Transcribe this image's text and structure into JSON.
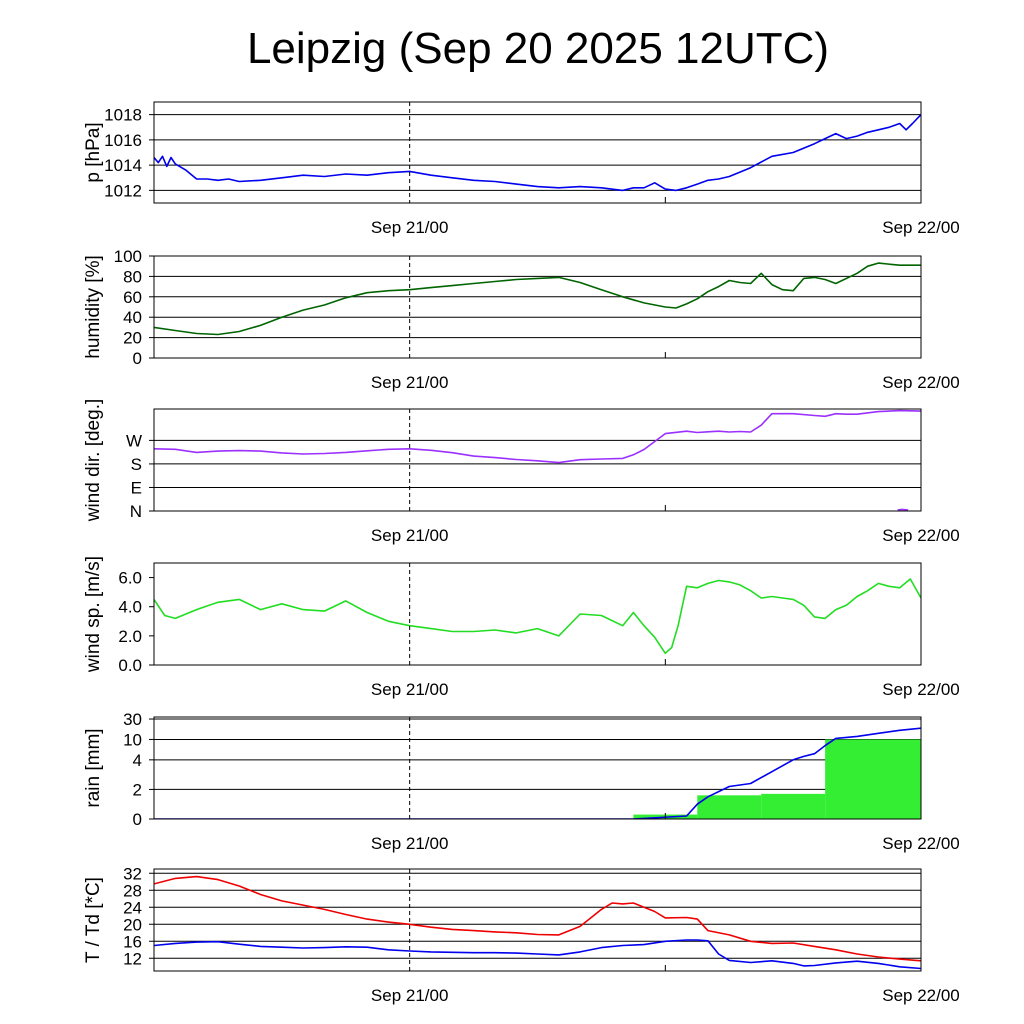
{
  "title": "Leipzig (Sep 20 2025 12UTC)",
  "time_axis": {
    "range_hours": [
      0,
      36
    ],
    "ticks": [
      {
        "hours": 12,
        "label": "Sep 21/00",
        "dashed": true
      },
      {
        "hours": 24,
        "label": "",
        "dashed": false
      },
      {
        "hours": 36,
        "label": "Sep 22/00",
        "dashed": false
      }
    ]
  },
  "chart_data": [
    {
      "type": "line",
      "ylabel": "p [hPa]",
      "ylim": [
        1011,
        1019
      ],
      "yticks": [
        {
          "v": 1012,
          "label": "1012"
        },
        {
          "v": 1014,
          "label": "1014"
        },
        {
          "v": 1016,
          "label": "1016"
        },
        {
          "v": 1018,
          "label": "1018"
        }
      ],
      "grid": true,
      "series": [
        {
          "name": "pressure",
          "color": "#0000ee",
          "x": [
            0,
            0.2,
            0.4,
            0.6,
            0.8,
            1.0,
            1.5,
            2.0,
            2.5,
            3,
            3.5,
            4,
            5,
            6,
            7,
            8,
            9,
            10,
            11,
            12,
            13,
            14,
            15,
            16,
            17,
            18,
            19,
            20,
            21,
            22,
            22.5,
            23,
            23.5,
            24,
            24.5,
            25,
            25.5,
            26,
            26.5,
            27,
            28,
            29,
            30,
            31,
            31.5,
            32,
            32.5,
            33,
            33.5,
            34,
            34.5,
            35,
            35.3,
            35.6,
            36
          ],
          "y": [
            1014.6,
            1014.2,
            1014.7,
            1013.9,
            1014.6,
            1014.1,
            1013.6,
            1012.9,
            1012.9,
            1012.8,
            1012.9,
            1012.7,
            1012.8,
            1013.0,
            1013.2,
            1013.1,
            1013.3,
            1013.2,
            1013.4,
            1013.5,
            1013.2,
            1013.0,
            1012.8,
            1012.7,
            1012.5,
            1012.3,
            1012.2,
            1012.3,
            1012.2,
            1012.0,
            1012.2,
            1012.2,
            1012.6,
            1012.1,
            1012.0,
            1012.2,
            1012.5,
            1012.8,
            1012.9,
            1013.1,
            1013.8,
            1014.7,
            1015.0,
            1015.7,
            1016.1,
            1016.5,
            1016.1,
            1016.3,
            1016.6,
            1016.8,
            1017.0,
            1017.3,
            1016.8,
            1017.3,
            1018.0
          ]
        }
      ]
    },
    {
      "type": "line",
      "ylabel": "humidity [%]",
      "ylim": [
        0,
        100
      ],
      "yticks": [
        {
          "v": 0,
          "label": "0"
        },
        {
          "v": 20,
          "label": "20"
        },
        {
          "v": 40,
          "label": "40"
        },
        {
          "v": 60,
          "label": "60"
        },
        {
          "v": 80,
          "label": "80"
        },
        {
          "v": 100,
          "label": "100"
        }
      ],
      "grid": true,
      "series": [
        {
          "name": "humidity",
          "color": "#006400",
          "x": [
            0,
            1,
            2,
            3,
            4,
            5,
            6,
            7,
            8,
            9,
            10,
            11,
            12,
            13,
            14,
            15,
            16,
            17,
            18,
            19,
            20,
            21,
            22,
            23,
            24,
            24.5,
            25,
            25.5,
            26,
            26.5,
            27,
            27.5,
            28,
            28.5,
            29,
            29.5,
            30,
            30.5,
            31,
            31.5,
            32,
            33,
            33.5,
            34,
            35,
            36
          ],
          "y": [
            30,
            27,
            24,
            23,
            26,
            32,
            40,
            47,
            52,
            59,
            64,
            66,
            67,
            69,
            71,
            73,
            75,
            77,
            78,
            79,
            74,
            67,
            60,
            54,
            50,
            49,
            53,
            58,
            65,
            70,
            76,
            74,
            73,
            83,
            72,
            67,
            66,
            78,
            79,
            77,
            73,
            83,
            90,
            93,
            91,
            91
          ]
        }
      ]
    },
    {
      "type": "line",
      "ylabel": "wind dir. [deg.]",
      "ylim": [
        0,
        390
      ],
      "yticks": [
        {
          "v": 0,
          "label": "N"
        },
        {
          "v": 90,
          "label": "E"
        },
        {
          "v": 180,
          "label": "S"
        },
        {
          "v": 270,
          "label": "W"
        }
      ],
      "grid": true,
      "series": [
        {
          "name": "wind_dir",
          "color": "#9b30ff",
          "x": [
            0,
            1,
            2,
            3,
            4,
            5,
            6,
            7,
            8,
            9,
            10,
            11,
            12,
            13,
            14,
            15,
            16,
            17,
            18,
            19,
            20,
            21,
            22,
            22.5,
            23,
            24,
            25,
            25.5,
            26,
            26.5,
            27,
            27.5,
            28,
            28.5,
            29,
            30,
            31,
            31.5,
            32,
            32.5,
            33,
            34,
            35,
            36
          ],
          "y": [
            238,
            236,
            224,
            229,
            231,
            229,
            222,
            218,
            220,
            224,
            230,
            236,
            238,
            232,
            223,
            210,
            204,
            197,
            192,
            185,
            196,
            199,
            201,
            215,
            235,
            296,
            305,
            300,
            303,
            305,
            302,
            304,
            302,
            328,
            372,
            372,
            365,
            362,
            372,
            370,
            370,
            380,
            384,
            382
          ]
        },
        {
          "name": "wind_dir_wrap",
          "color": "#9b30ff",
          "x": [
            34.9,
            35.1,
            35.4
          ],
          "y": [
            4,
            6,
            4
          ]
        }
      ]
    },
    {
      "type": "line",
      "ylabel": "wind sp. [m/s]",
      "ylim": [
        0,
        7
      ],
      "yticks": [
        {
          "v": 0,
          "label": "0.0"
        },
        {
          "v": 2,
          "label": "2.0"
        },
        {
          "v": 4,
          "label": "4.0"
        },
        {
          "v": 6,
          "label": "6.0"
        }
      ],
      "grid": false,
      "series": [
        {
          "name": "wind_speed",
          "color": "#22dd22",
          "x": [
            0,
            0.5,
            1,
            2,
            3,
            4,
            5,
            6,
            7,
            8,
            9,
            10,
            11,
            12,
            13,
            14,
            15,
            16,
            17,
            18,
            19,
            20,
            21,
            22,
            22.5,
            23,
            23.5,
            24,
            24.3,
            24.6,
            25,
            25.5,
            26,
            26.5,
            27,
            27.5,
            28,
            28.5,
            29,
            29.5,
            30,
            30.5,
            31,
            31.5,
            32,
            32.5,
            33,
            33.5,
            34,
            34.5,
            35,
            35.5,
            36
          ],
          "y": [
            4.5,
            3.4,
            3.2,
            3.8,
            4.3,
            4.5,
            3.8,
            4.2,
            3.8,
            3.7,
            4.4,
            3.6,
            3.0,
            2.7,
            2.5,
            2.3,
            2.3,
            2.4,
            2.2,
            2.5,
            2.0,
            3.5,
            3.4,
            2.7,
            3.6,
            2.7,
            1.9,
            0.8,
            1.2,
            2.7,
            5.4,
            5.3,
            5.6,
            5.8,
            5.7,
            5.5,
            5.1,
            4.6,
            4.7,
            4.6,
            4.5,
            4.1,
            3.3,
            3.2,
            3.8,
            4.1,
            4.7,
            5.1,
            5.6,
            5.4,
            5.3,
            5.9,
            4.6
          ]
        }
      ]
    },
    {
      "type": "area",
      "ylabel": "rain [mm]",
      "ylim": [
        0,
        30
      ],
      "yscale": "custom",
      "yticks": [
        {
          "v": 0,
          "label": "0"
        },
        {
          "v": 2,
          "label": "2"
        },
        {
          "v": 4,
          "label": "4"
        },
        {
          "v": 10,
          "label": "10"
        },
        {
          "v": 30,
          "label": "30"
        }
      ],
      "grid": true,
      "series": [
        {
          "name": "rain_bars",
          "color": "#33ee33",
          "kind": "steps",
          "steps": [
            {
              "from": 22.5,
              "to": 25.5,
              "v": 0.3
            },
            {
              "from": 25.5,
              "to": 28.5,
              "v": 1.6
            },
            {
              "from": 28.5,
              "to": 31.5,
              "v": 1.7
            },
            {
              "from": 31.5,
              "to": 36,
              "v": 10
            }
          ]
        },
        {
          "name": "rain_accum",
          "color": "#0000ee",
          "kind": "line",
          "x": [
            0,
            22.5,
            25.0,
            25.5,
            26,
            27,
            28,
            28.5,
            29,
            30,
            30.5,
            31,
            31.5,
            32,
            33,
            34,
            35,
            36
          ],
          "y": [
            0,
            0,
            0.2,
            1.0,
            1.5,
            2.2,
            2.4,
            2.8,
            3.2,
            4.0,
            5.0,
            5.8,
            8.2,
            11.0,
            13.0,
            16.0,
            19.0,
            21.0
          ]
        }
      ]
    },
    {
      "type": "line",
      "ylabel": "T / Td [*C]",
      "ylim": [
        9,
        33
      ],
      "yticks": [
        {
          "v": 12,
          "label": "12"
        },
        {
          "v": 16,
          "label": "16"
        },
        {
          "v": 20,
          "label": "20"
        },
        {
          "v": 24,
          "label": "24"
        },
        {
          "v": 28,
          "label": "28"
        },
        {
          "v": 32,
          "label": "32"
        }
      ],
      "grid": true,
      "series": [
        {
          "name": "temperature",
          "color": "#ee0000",
          "x": [
            0,
            1,
            2,
            3,
            4,
            5,
            6,
            7,
            8,
            9,
            10,
            11,
            12,
            13,
            14,
            15,
            16,
            17,
            18,
            19,
            20,
            20.5,
            21,
            21.5,
            22,
            22.5,
            23,
            23.5,
            24,
            25,
            25.5,
            26,
            27,
            28,
            29,
            30,
            31,
            32,
            33,
            34,
            35,
            36
          ],
          "y": [
            29.5,
            30.8,
            31.2,
            30.5,
            29,
            27,
            25.5,
            24.5,
            23.5,
            22.3,
            21.2,
            20.5,
            20,
            19.3,
            18.8,
            18.5,
            18.2,
            18.0,
            17.6,
            17.5,
            19.5,
            21.5,
            23.5,
            25.0,
            24.8,
            25.0,
            24.0,
            23.0,
            21.5,
            21.6,
            21.2,
            18.5,
            17.5,
            16.0,
            15.5,
            15.6,
            14.8,
            14.0,
            13.0,
            12.3,
            11.8,
            11.4
          ]
        },
        {
          "name": "dewpoint",
          "color": "#0000ee",
          "x": [
            0,
            1,
            2,
            3,
            4,
            5,
            6,
            7,
            8,
            9,
            10,
            11,
            12,
            13,
            14,
            15,
            16,
            17,
            18,
            19,
            20,
            21,
            22,
            23,
            24,
            25,
            25.5,
            26,
            26.5,
            27,
            28,
            29,
            30,
            30.5,
            31,
            32,
            33,
            34,
            35,
            36
          ],
          "y": [
            15.0,
            15.5,
            15.8,
            15.9,
            15.3,
            14.8,
            14.6,
            14.4,
            14.5,
            14.7,
            14.6,
            14.0,
            13.7,
            13.5,
            13.4,
            13.3,
            13.3,
            13.2,
            13.0,
            12.8,
            13.5,
            14.5,
            15.0,
            15.2,
            16.0,
            16.3,
            16.3,
            16.1,
            13.0,
            11.5,
            11.0,
            11.4,
            10.8,
            10.2,
            10.3,
            10.9,
            11.3,
            10.8,
            10.0,
            9.6
          ]
        }
      ]
    }
  ]
}
